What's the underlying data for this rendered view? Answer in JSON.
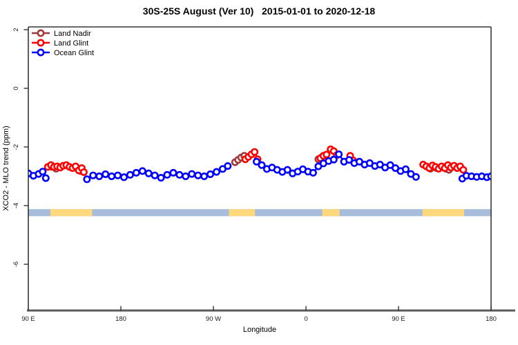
{
  "chart_data": {
    "type": "scatter",
    "title": "30S-25S August (Ver 10)   2015-01-01 to 2020-12-18",
    "xlabel": "Longitude",
    "ylabel": "XCO2 - MLO trend (ppm)",
    "xlim": [
      90,
      540
    ],
    "ylim": [
      -7.6,
      2.1
    ],
    "grid": false,
    "x_ticks": [
      {
        "value": 90,
        "label": "90 E"
      },
      {
        "value": 180,
        "label": "180"
      },
      {
        "value": 270,
        "label": "90 W"
      },
      {
        "value": 360,
        "label": "0"
      },
      {
        "value": 450,
        "label": "90 E"
      },
      {
        "value": 540,
        "label": "180"
      }
    ],
    "y_ticks": [
      {
        "value": 2,
        "label": "2"
      },
      {
        "value": 0,
        "label": "0"
      },
      {
        "value": -2,
        "label": "-2"
      },
      {
        "value": -4,
        "label": "-4"
      },
      {
        "value": -6,
        "label": "-6"
      }
    ],
    "legend": {
      "position": "top-left",
      "items": [
        {
          "name": "Land Nadir",
          "color": "#a13939"
        },
        {
          "name": "Land Glint",
          "color": "#ff0000"
        },
        {
          "name": "Ocean Glint",
          "color": "#0000ff"
        }
      ]
    },
    "series": [
      {
        "name": "Land Nadir",
        "color": "#a13939",
        "segments": [
          [
            [
              113,
              -2.68
            ],
            [
              117,
              -2.74
            ]
          ],
          [
            [
              141,
              -2.82
            ]
          ],
          [
            [
              291,
              -2.52
            ],
            [
              294,
              -2.44
            ],
            [
              297,
              -2.36
            ],
            [
              300,
              -2.3
            ]
          ],
          [
            [
              372,
              -2.42
            ],
            [
              375,
              -2.36
            ]
          ],
          [
            [
              481,
              -2.74
            ],
            [
              484,
              -2.67
            ],
            [
              487,
              -2.72
            ]
          ],
          [
            [
              496,
              -2.74
            ],
            [
              499,
              -2.78
            ]
          ]
        ]
      },
      {
        "name": "Land Glint",
        "color": "#ff0000",
        "segments": [
          [
            [
              109,
              -2.68
            ],
            [
              112,
              -2.62
            ],
            [
              115,
              -2.68
            ],
            [
              118,
              -2.66
            ],
            [
              121,
              -2.7
            ],
            [
              124,
              -2.64
            ],
            [
              127,
              -2.62
            ],
            [
              130,
              -2.68
            ],
            [
              133,
              -2.72
            ],
            [
              136,
              -2.66
            ],
            [
              139,
              -2.8
            ],
            [
              142,
              -2.72
            ],
            [
              144,
              -2.86
            ]
          ],
          [
            [
              301,
              -2.42
            ],
            [
              304,
              -2.34
            ],
            [
              307,
              -2.25
            ],
            [
              310,
              -2.17
            ],
            [
              313,
              -2.42
            ]
          ],
          [
            [
              374,
              -2.38
            ],
            [
              377,
              -2.3
            ],
            [
              380,
              -2.26
            ],
            [
              384,
              -2.08
            ],
            [
              387,
              -2.14
            ],
            [
              390,
              -2.28
            ]
          ],
          [
            [
              403,
              -2.3
            ],
            [
              406,
              -2.46
            ]
          ],
          [
            [
              474,
              -2.6
            ],
            [
              477,
              -2.66
            ],
            [
              480,
              -2.72
            ],
            [
              483,
              -2.63
            ],
            [
              486,
              -2.68
            ],
            [
              489,
              -2.74
            ],
            [
              492,
              -2.66
            ],
            [
              495,
              -2.72
            ],
            [
              498,
              -2.62
            ],
            [
              501,
              -2.7
            ],
            [
              504,
              -2.64
            ],
            [
              507,
              -2.72
            ],
            [
              510,
              -2.66
            ],
            [
              513,
              -2.78
            ]
          ]
        ]
      },
      {
        "name": "Ocean Glint",
        "color": "#0000ff",
        "segments": [
          [
            [
              90,
              -2.9
            ],
            [
              95,
              -2.98
            ],
            [
              100,
              -2.92
            ],
            [
              104,
              -2.84
            ],
            [
              107,
              -3.06
            ]
          ],
          [
            [
              147,
              -3.1
            ],
            [
              153,
              -2.97
            ],
            [
              159,
              -3.0
            ],
            [
              165,
              -2.93
            ],
            [
              171,
              -3.0
            ],
            [
              177,
              -2.97
            ],
            [
              183,
              -3.03
            ],
            [
              189,
              -2.95
            ],
            [
              195,
              -2.88
            ],
            [
              201,
              -2.82
            ],
            [
              207,
              -2.9
            ],
            [
              213,
              -2.97
            ],
            [
              219,
              -3.05
            ],
            [
              225,
              -2.95
            ],
            [
              231,
              -2.88
            ],
            [
              237,
              -2.95
            ],
            [
              243,
              -3.0
            ],
            [
              249,
              -2.92
            ],
            [
              255,
              -2.97
            ],
            [
              261,
              -3.0
            ],
            [
              267,
              -2.93
            ],
            [
              273,
              -2.85
            ],
            [
              279,
              -2.75
            ],
            [
              284,
              -2.65
            ]
          ],
          [
            [
              312,
              -2.5
            ],
            [
              317,
              -2.62
            ],
            [
              322,
              -2.75
            ],
            [
              327,
              -2.7
            ],
            [
              332,
              -2.78
            ],
            [
              337,
              -2.85
            ],
            [
              342,
              -2.78
            ],
            [
              347,
              -2.9
            ],
            [
              352,
              -2.84
            ],
            [
              357,
              -2.76
            ],
            [
              362,
              -2.84
            ],
            [
              367,
              -2.88
            ],
            [
              372,
              -2.66
            ],
            [
              377,
              -2.56
            ],
            [
              382,
              -2.48
            ],
            [
              387,
              -2.43
            ],
            [
              392,
              -2.25
            ],
            [
              397,
              -2.5
            ],
            [
              402,
              -2.44
            ],
            [
              407,
              -2.55
            ],
            [
              412,
              -2.5
            ],
            [
              417,
              -2.6
            ],
            [
              422,
              -2.55
            ],
            [
              427,
              -2.65
            ],
            [
              432,
              -2.6
            ],
            [
              437,
              -2.7
            ],
            [
              442,
              -2.62
            ],
            [
              447,
              -2.72
            ],
            [
              452,
              -2.82
            ],
            [
              457,
              -2.76
            ],
            [
              462,
              -2.92
            ],
            [
              467,
              -3.02
            ]
          ],
          [
            [
              512,
              -3.08
            ],
            [
              516,
              -2.98
            ],
            [
              521,
              -3.0
            ],
            [
              526,
              -3.02
            ],
            [
              531,
              -3.0
            ],
            [
              536,
              -3.03
            ],
            [
              540,
              -3.0
            ]
          ]
        ]
      }
    ],
    "surface_band": {
      "y_range": [
        -4.12,
        -4.36
      ],
      "lon_range": [
        90,
        540
      ],
      "ocean_color": "#a8bddb",
      "land_color": "#fdd87c",
      "land_segments": [
        [
          111.5,
          152
        ],
        [
          285,
          310.5
        ],
        [
          375.9,
          392.7
        ],
        [
          473.4,
          513.8
        ]
      ]
    }
  }
}
